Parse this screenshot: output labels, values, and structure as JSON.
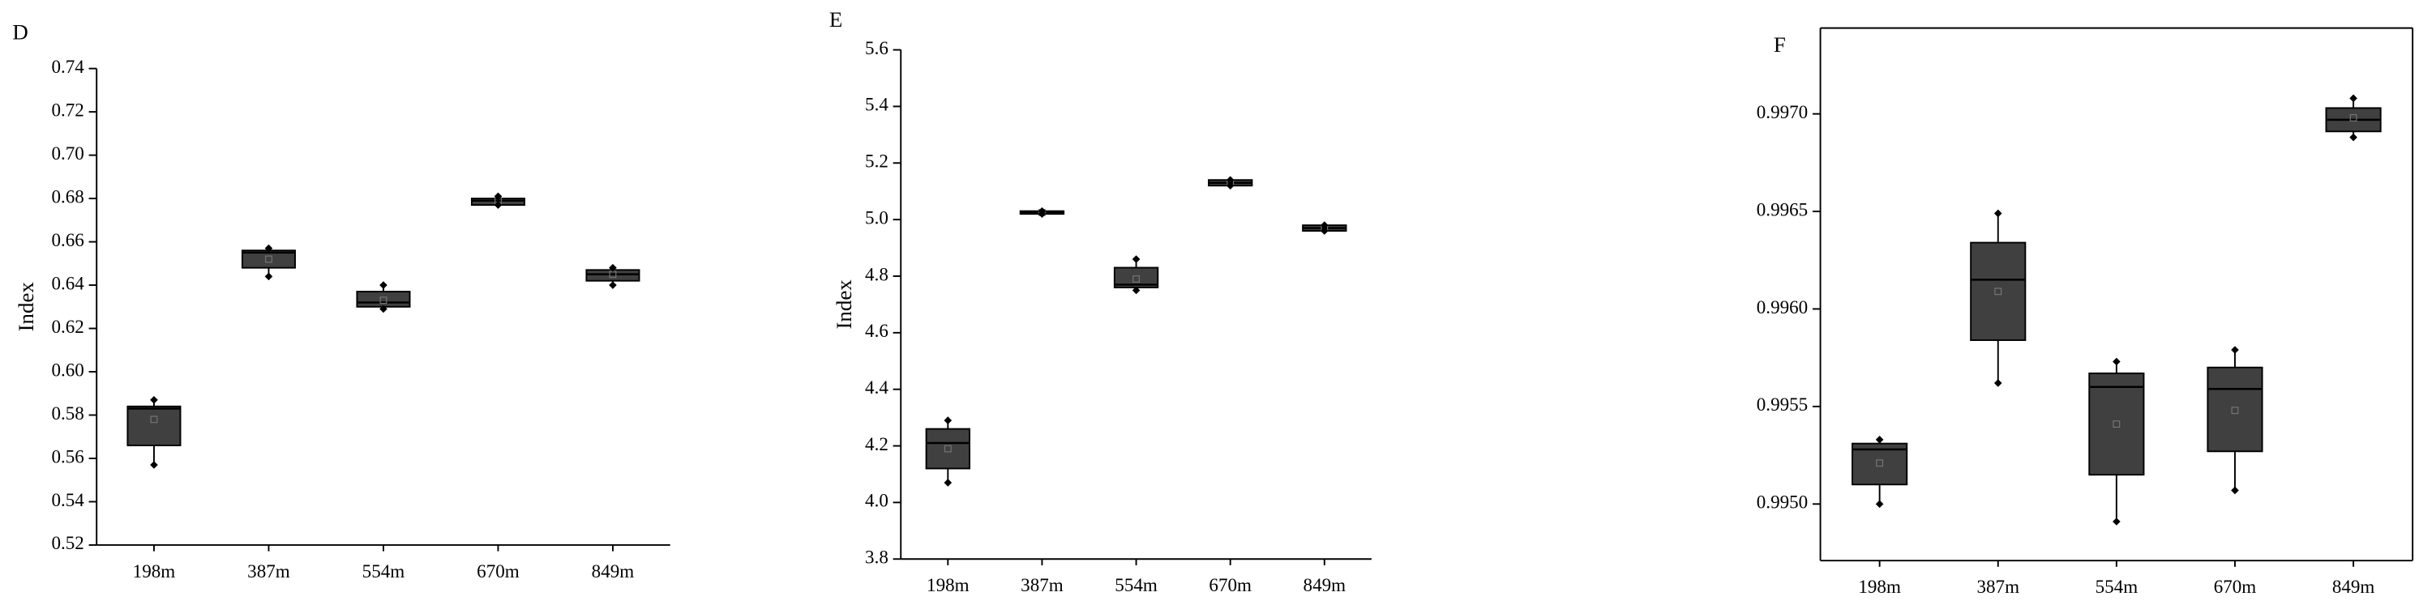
{
  "chart_data": [
    {
      "type": "box",
      "title": "D",
      "ylabel": "Index",
      "color": "#404040",
      "categories": [
        "198m",
        "387m",
        "554m",
        "670m",
        "849m"
      ],
      "boxes": [
        {
          "low": 0.557,
          "q1": 0.566,
          "median": 0.583,
          "q3": 0.584,
          "high": 0.587,
          "mean": 0.578
        },
        {
          "low": 0.644,
          "q1": 0.648,
          "median": 0.655,
          "q3": 0.656,
          "high": 0.657,
          "mean": 0.652
        },
        {
          "low": 0.629,
          "q1": 0.63,
          "median": 0.632,
          "q3": 0.637,
          "high": 0.64,
          "mean": 0.633
        },
        {
          "low": 0.677,
          "q1": 0.677,
          "median": 0.679,
          "q3": 0.68,
          "high": 0.681,
          "mean": 0.679
        },
        {
          "low": 0.64,
          "q1": 0.642,
          "median": 0.645,
          "q3": 0.647,
          "high": 0.648,
          "mean": 0.645
        }
      ],
      "ylim": [
        0.52,
        0.74
      ],
      "yticks": [
        0.52,
        0.54,
        0.56,
        0.58,
        {
          "value": 0.6,
          "label": "0.60"
        },
        0.62,
        0.64,
        0.66,
        0.68,
        {
          "value": 0.7,
          "label": "0.70"
        },
        0.72,
        0.74
      ]
    },
    {
      "type": "box",
      "title": "E",
      "ylabel": "Index",
      "color": "#404040",
      "categories": [
        "198m",
        "387m",
        "554m",
        "670m",
        "849m"
      ],
      "boxes": [
        {
          "low": 4.07,
          "q1": 4.12,
          "median": 4.21,
          "q3": 4.26,
          "high": 4.29,
          "mean": 4.19
        },
        {
          "low": 5.02,
          "q1": 5.02,
          "median": 5.025,
          "q3": 5.03,
          "high": 5.03,
          "mean": 5.025
        },
        {
          "low": 4.75,
          "q1": 4.76,
          "median": 4.77,
          "q3": 4.83,
          "high": 4.86,
          "mean": 4.79
        },
        {
          "low": 5.12,
          "q1": 5.12,
          "median": 5.13,
          "q3": 5.14,
          "high": 5.14,
          "mean": 5.13
        },
        {
          "low": 4.96,
          "q1": 4.96,
          "median": 4.97,
          "q3": 4.98,
          "high": 4.98,
          "mean": 4.97
        }
      ],
      "ylim": [
        3.8,
        5.6
      ],
      "yticks": [
        3.8,
        {
          "value": 4,
          "label": "4.0"
        },
        4.2,
        4.4,
        4.6,
        4.8,
        {
          "value": 5,
          "label": "5.0"
        },
        5.2,
        5.4,
        5.6
      ]
    },
    {
      "type": "box",
      "title": "F",
      "color": "#404040",
      "categories": [
        "198m",
        "387m",
        "554m",
        "670m",
        "849m"
      ],
      "boxes": [
        {
          "low": 0.995,
          "q1": 0.9951,
          "median": 0.99528,
          "q3": 0.99531,
          "high": 0.99533,
          "mean": 0.99521
        },
        {
          "low": 0.99562,
          "q1": 0.99584,
          "median": 0.99615,
          "q3": 0.99634,
          "high": 0.99649,
          "mean": 0.99609
        },
        {
          "low": 0.99491,
          "q1": 0.99515,
          "median": 0.9956,
          "q3": 0.99567,
          "high": 0.99573,
          "mean": 0.99541
        },
        {
          "low": 0.99507,
          "q1": 0.99527,
          "median": 0.99559,
          "q3": 0.9957,
          "high": 0.99579,
          "mean": 0.99548
        },
        {
          "low": 0.99688,
          "q1": 0.99691,
          "median": 0.99697,
          "q3": 0.99703,
          "high": 0.99708,
          "mean": 0.99698
        }
      ],
      "ylim": [
        0.99471,
        0.99744
      ],
      "yticks": [
        {
          "value": 0.995,
          "label": "0.9950"
        },
        {
          "value": 0.9955,
          "label": "0.9955"
        },
        {
          "value": 0.996,
          "label": "0.9960"
        },
        {
          "value": 0.9965,
          "label": "0.9965"
        },
        {
          "value": 0.997,
          "label": "0.9970"
        }
      ]
    }
  ]
}
